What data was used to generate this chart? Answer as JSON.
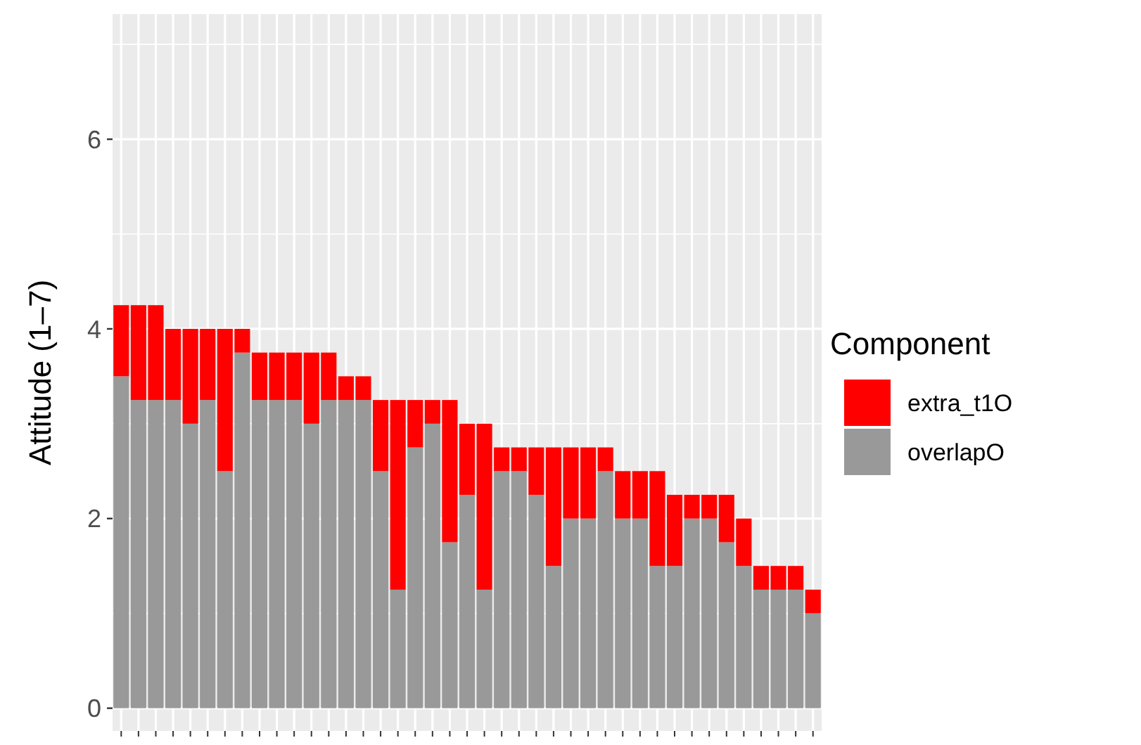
{
  "chart_data": {
    "type": "bar",
    "stacked": true,
    "ylabel": "Attitude (1–7)",
    "legend_title": "Component",
    "legend": "right",
    "grid": true,
    "categories": [
      null,
      null,
      null,
      null,
      null,
      null,
      null,
      null,
      null,
      null,
      null,
      null,
      null,
      null,
      null,
      null,
      null,
      null,
      null,
      null,
      null,
      null,
      null,
      null,
      null,
      null,
      null,
      null,
      null,
      null,
      null,
      null,
      null,
      null,
      null,
      null,
      null,
      null,
      null,
      null,
      null
    ],
    "ylim": [
      -0.24,
      7.32
    ],
    "yticks": [
      0,
      2,
      4,
      6
    ],
    "series": [
      {
        "name": "overlapO",
        "color": "#999999",
        "values": [
          3.5,
          3.25,
          3.25,
          3.25,
          3.0,
          3.25,
          2.5,
          3.75,
          3.25,
          3.25,
          3.25,
          3.0,
          3.25,
          3.25,
          3.25,
          2.5,
          1.25,
          2.75,
          3.0,
          1.75,
          2.25,
          1.25,
          2.5,
          2.5,
          2.25,
          1.5,
          2.0,
          2.0,
          2.5,
          2.0,
          2.0,
          1.5,
          1.5,
          2.0,
          2.0,
          1.75,
          1.5,
          1.25,
          1.25,
          1.25,
          1.0
        ]
      },
      {
        "name": "extra_t1O",
        "color": "#ff0000",
        "values": [
          0.75,
          1.0,
          1.0,
          0.75,
          1.0,
          0.75,
          1.5,
          0.25,
          0.5,
          0.5,
          0.5,
          0.75,
          0.5,
          0.25,
          0.25,
          0.75,
          2.0,
          0.5,
          0.25,
          1.5,
          0.75,
          1.75,
          0.25,
          0.25,
          0.5,
          1.25,
          0.75,
          0.75,
          0.25,
          0.5,
          0.5,
          1.0,
          0.75,
          0.25,
          0.25,
          0.5,
          0.5,
          0.25,
          0.25,
          0.25,
          0.25
        ]
      }
    ]
  }
}
